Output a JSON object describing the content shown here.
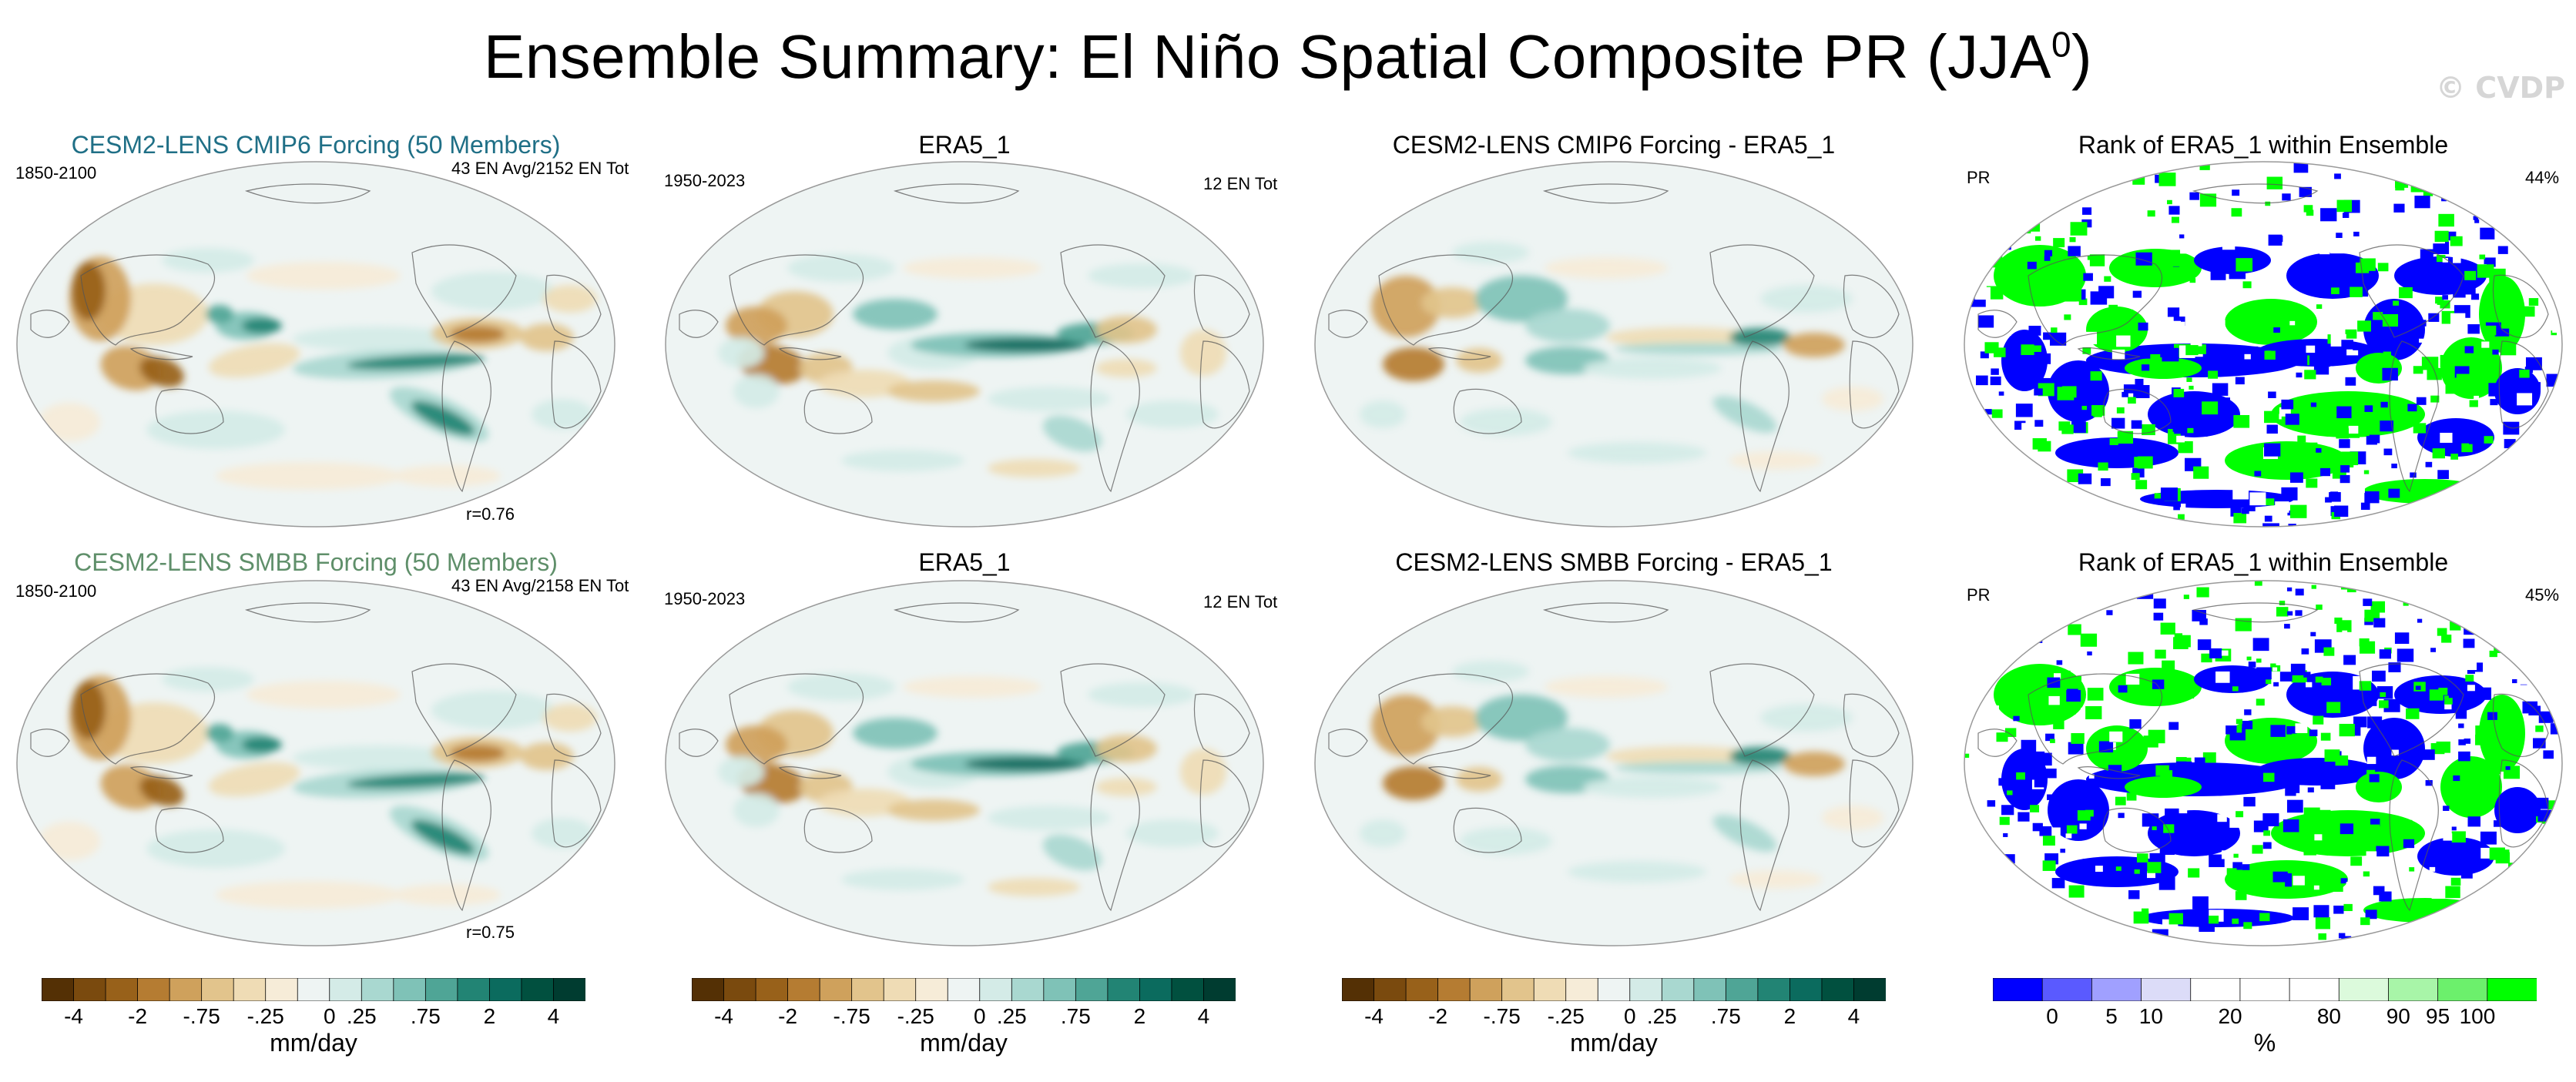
{
  "page": {
    "title_main": "Ensemble Summary: El Niño Spatial Composite PR (JJA",
    "title_sup": "0",
    "title_close": ")",
    "watermark": "© CVDP"
  },
  "colors": {
    "cesm2_cmip6": "#1f6f86",
    "cesm2_smbb": "#5f8f6a",
    "rank_low": "#0000ff",
    "rank_high": "#00ff00"
  },
  "rows": [
    {
      "model": {
        "title": "CESM2-LENS CMIP6 Forcing (50 Members)",
        "years": "1850-2100",
        "count": "43 EN Avg/2152 EN Tot",
        "corr": "r=0.76"
      },
      "obs": {
        "title": "ERA5_1",
        "years": "1950-2023",
        "count": "12 EN Tot"
      },
      "diff": {
        "title": "CESM2-LENS CMIP6 Forcing - ERA5_1"
      },
      "rank": {
        "title": "Rank of ERA5_1 within Ensemble",
        "var": "PR",
        "pct": "44%"
      }
    },
    {
      "model": {
        "title": "CESM2-LENS SMBB Forcing (50 Members)",
        "years": "1850-2100",
        "count": "43 EN Avg/2158 EN Tot",
        "corr": "r=0.75"
      },
      "obs": {
        "title": "ERA5_1",
        "years": "1950-2023",
        "count": "12 EN Tot"
      },
      "diff": {
        "title": "CESM2-LENS SMBB Forcing - ERA5_1"
      },
      "rank": {
        "title": "Rank of ERA5_1 within Ensemble",
        "var": "PR",
        "pct": "45%"
      }
    }
  ],
  "chart_data": {
    "type": "heatmap",
    "projection": "Robinson (Pacific-centered)",
    "units": "mm/day",
    "colorbar_pr": {
      "units": "mm/day",
      "tick_labels": [
        "-4",
        "-2",
        "-.75",
        "-.25",
        "0",
        ".25",
        ".75",
        "2",
        "4"
      ],
      "colors": [
        "#543005",
        "#7a4a0e",
        "#98611a",
        "#b57c32",
        "#cfa15c",
        "#e2c48c",
        "#efdcb5",
        "#f6ecd8",
        "#eef4f3",
        "#d4ebe7",
        "#a9d8d0",
        "#7fc2b7",
        "#4fa596",
        "#228474",
        "#0b6b5e",
        "#01503f",
        "#003c30"
      ]
    },
    "colorbar_rank": {
      "units": "%",
      "tick_labels": [
        "0",
        "5",
        "10",
        "20",
        "80",
        "90",
        "95",
        "100"
      ],
      "colors": [
        "#0000ff",
        "#5a5aff",
        "#a0a0ff",
        "#dcdcf8",
        "#ffffff",
        "#ffffff",
        "#ffffff",
        "#dcfadc",
        "#a8f5a8",
        "#6cf06c",
        "#00ff00"
      ]
    },
    "panels": [
      {
        "name": "CESM2-LENS CMIP6 Forcing (50 Members)",
        "pattern_correlation": 0.76,
        "el_nino_avg": 43,
        "el_nino_total": 2152
      },
      {
        "name": "ERA5_1",
        "el_nino_total": 12
      },
      {
        "name": "CESM2-LENS CMIP6 Forcing - ERA5_1"
      },
      {
        "name": "Rank of ERA5_1 within Ensemble",
        "percent": 44
      },
      {
        "name": "CESM2-LENS SMBB Forcing (50 Members)",
        "pattern_correlation": 0.75,
        "el_nino_avg": 43,
        "el_nino_total": 2158
      },
      {
        "name": "ERA5_1",
        "el_nino_total": 12
      },
      {
        "name": "CESM2-LENS SMBB Forcing - ERA5_1"
      },
      {
        "name": "Rank of ERA5_1 within Ensemble",
        "percent": 45
      }
    ]
  }
}
